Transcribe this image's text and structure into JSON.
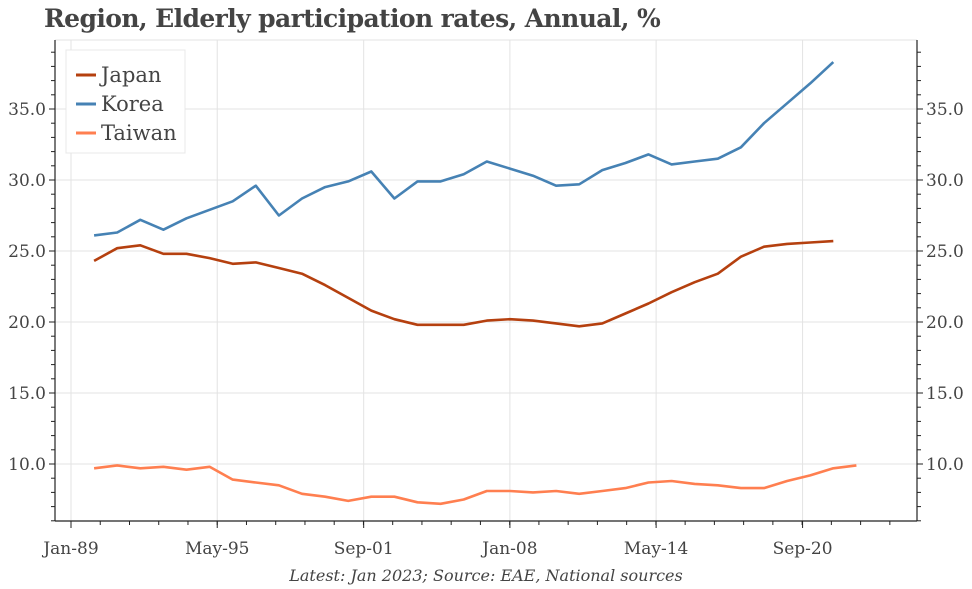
{
  "chart_data": {
    "type": "line",
    "title": "Region, Elderly participation rates, Annual, %",
    "footnote": "Latest: Jan 2023; Source: EAE, National sources",
    "xlabel": "",
    "ylabel": "",
    "x_tick_labels": [
      "Jan-89",
      "May-95",
      "Sep-01",
      "Jan-08",
      "May-14",
      "Sep-20"
    ],
    "x_tick_dates": [
      1989.0,
      1995.33,
      2001.67,
      2008.0,
      2014.33,
      2020.67
    ],
    "xlim": [
      1988.3,
      2025.0
    ],
    "y_ticks": [
      10.0,
      15.0,
      20.0,
      25.0,
      30.0,
      35.0
    ],
    "y_tick_labels": [
      "10.0",
      "15.0",
      "20.0",
      "25.0",
      "30.0",
      "35.0"
    ],
    "ylim": [
      5.9,
      39.3
    ],
    "grid": true,
    "y_axis_sides": [
      "left",
      "right"
    ],
    "legend": {
      "placement": "top-left",
      "entries": [
        "Japan",
        "Korea",
        "Taiwan"
      ]
    },
    "series": [
      {
        "name": "Japan",
        "color": "#b5400f",
        "x": [
          1990,
          1991,
          1992,
          1993,
          1994,
          1995,
          1996,
          1997,
          1998,
          1999,
          2000,
          2001,
          2002,
          2003,
          2004,
          2005,
          2006,
          2007,
          2008,
          2009,
          2010,
          2011,
          2012,
          2013,
          2014,
          2015,
          2016,
          2017,
          2018,
          2019,
          2020,
          2021,
          2022
        ],
        "values": [
          24.3,
          25.2,
          25.4,
          24.8,
          24.8,
          24.5,
          24.1,
          24.2,
          23.8,
          23.4,
          22.6,
          21.7,
          20.8,
          20.2,
          19.8,
          19.8,
          19.8,
          20.1,
          20.2,
          20.1,
          19.9,
          19.7,
          19.9,
          20.6,
          21.3,
          22.1,
          22.8,
          23.4,
          24.6,
          25.3,
          25.5,
          25.6,
          25.7
        ]
      },
      {
        "name": "Korea",
        "color": "#4682b4",
        "x": [
          1990,
          1991,
          1992,
          1993,
          1994,
          1995,
          1996,
          1997,
          1998,
          1999,
          2000,
          2001,
          2002,
          2003,
          2004,
          2005,
          2006,
          2007,
          2008,
          2009,
          2010,
          2011,
          2012,
          2013,
          2014,
          2015,
          2016,
          2017,
          2018,
          2019,
          2020,
          2021,
          2022
        ],
        "values": [
          26.1,
          26.3,
          27.2,
          26.5,
          27.3,
          27.9,
          28.5,
          29.6,
          27.5,
          28.7,
          29.5,
          29.9,
          30.6,
          28.7,
          29.9,
          29.9,
          30.4,
          31.3,
          30.8,
          30.3,
          29.6,
          29.7,
          30.7,
          31.2,
          31.8,
          31.1,
          31.3,
          31.5,
          32.3,
          34.0,
          35.4,
          36.8,
          38.3
        ]
      },
      {
        "name": "Taiwan",
        "color": "#ff7f50",
        "x": [
          1990,
          1991,
          1992,
          1993,
          1994,
          1995,
          1996,
          1997,
          1998,
          1999,
          2000,
          2001,
          2002,
          2003,
          2004,
          2005,
          2006,
          2007,
          2008,
          2009,
          2010,
          2011,
          2012,
          2013,
          2014,
          2015,
          2016,
          2017,
          2018,
          2019,
          2020,
          2021,
          2022,
          2023
        ],
        "values": [
          9.7,
          9.9,
          9.7,
          9.8,
          9.6,
          9.8,
          8.9,
          8.7,
          8.5,
          7.9,
          7.7,
          7.4,
          7.7,
          7.7,
          7.3,
          7.2,
          7.5,
          8.1,
          8.1,
          8.0,
          8.1,
          7.9,
          8.1,
          8.3,
          8.7,
          8.8,
          8.6,
          8.5,
          8.3,
          8.3,
          8.8,
          9.2,
          9.7,
          9.9
        ]
      }
    ]
  }
}
